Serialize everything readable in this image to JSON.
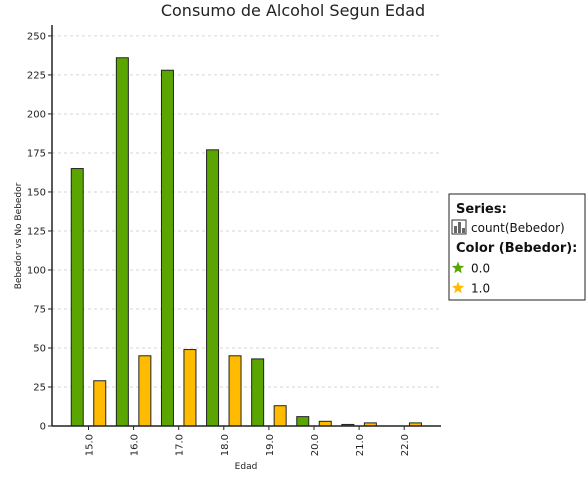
{
  "chart_data": {
    "type": "bar",
    "title": "Consumo de Alcohol Segun Edad",
    "xlabel": "Edad",
    "ylabel": "Bebedor vs No Bebedor",
    "categories": [
      "15.0",
      "16.0",
      "17.0",
      "18.0",
      "19.0",
      "20.0",
      "21.0",
      "22.0"
    ],
    "series": [
      {
        "name": "0.0",
        "color": "#5aa500",
        "values": [
          165,
          236,
          228,
          177,
          43,
          6,
          1,
          0
        ]
      },
      {
        "name": "1.0",
        "color": "#ffbb00",
        "values": [
          29,
          45,
          49,
          45,
          13,
          3,
          2,
          2
        ]
      }
    ],
    "yticks": [
      0,
      25,
      50,
      75,
      100,
      125,
      150,
      175,
      200,
      225,
      250
    ],
    "ylim": [
      0,
      257
    ],
    "grid": true,
    "legend": {
      "placement": "right",
      "series_heading": "Series:",
      "series_item": "count(Bebedor)",
      "color_heading": "Color (Bebedor):",
      "color_items": [
        {
          "label": "0.0",
          "color": "#5aa500"
        },
        {
          "label": "1.0",
          "color": "#ffbb00"
        }
      ]
    }
  }
}
